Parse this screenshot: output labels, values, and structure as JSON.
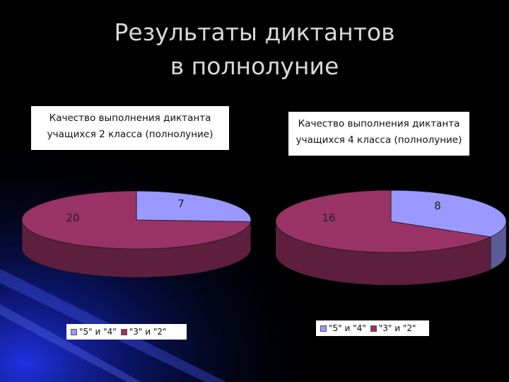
{
  "slide": {
    "title_lines": [
      "Результаты диктантов",
      "в полнолуние"
    ]
  },
  "colors": {
    "series_a": "#9999ff",
    "series_b": "#993366",
    "background": "#000000",
    "glow": "#1a2bd9"
  },
  "chart_data": [
    {
      "type": "pie",
      "title_lines": [
        "Качество выполнения диктанта",
        "учащихся 2 класса (полнолуние)"
      ],
      "categories": [
        "\"5\" и \"4\"",
        "\"3\" и \"2\""
      ],
      "values": [
        7,
        20
      ],
      "legend_position": "bottom",
      "style": "3d"
    },
    {
      "type": "pie",
      "title_lines": [
        "Качество выполнения диктанта",
        "учащихся 4 класса (полнолуние)"
      ],
      "categories": [
        "\"5\" и \"4\"",
        "\"3\" и \"2\""
      ],
      "values": [
        8,
        16
      ],
      "legend_position": "bottom",
      "style": "3d"
    }
  ]
}
